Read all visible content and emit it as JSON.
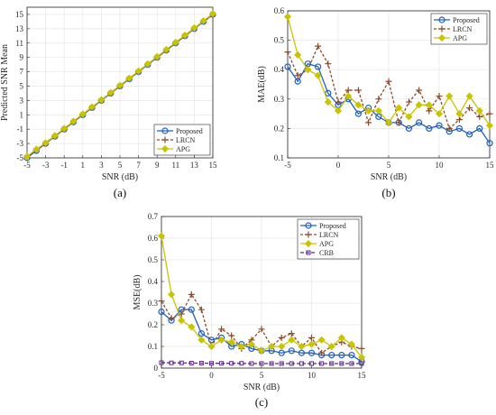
{
  "colors": {
    "proposed": "#1f5fbf",
    "lrcn": "#8b4a2b",
    "apg": "#c8c400",
    "crb": "#5b2a86"
  },
  "chart_data": [
    {
      "type": "line",
      "panel_label": "(a)",
      "xlabel": "SNR (dB)",
      "ylabel": "Predicted SNR Mean",
      "xlim": [
        -5,
        15
      ],
      "ylim": [
        -5,
        16
      ],
      "xticks": [
        -5,
        -3,
        -1,
        1,
        3,
        5,
        7,
        9,
        11,
        13,
        15
      ],
      "yticks": [
        -5,
        -3,
        -1,
        1,
        3,
        5,
        7,
        9,
        11,
        13,
        15
      ],
      "grid": true,
      "legend_position": "bottom-right",
      "x": [
        -5,
        -4,
        -3,
        -2,
        -1,
        0,
        1,
        2,
        3,
        4,
        5,
        6,
        7,
        8,
        9,
        10,
        11,
        12,
        13,
        14,
        15
      ],
      "series": [
        {
          "name": "Proposed",
          "values": [
            -5,
            -4,
            -3,
            -2,
            -1,
            0,
            1,
            2,
            3,
            4,
            5,
            6,
            7,
            8,
            9,
            10,
            11,
            12,
            13,
            14,
            15
          ]
        },
        {
          "name": "LRCN",
          "values": [
            -4.9,
            -3.9,
            -3,
            -2,
            -1,
            0,
            1,
            2,
            3,
            4,
            5,
            6,
            7,
            8,
            9,
            10,
            11,
            12,
            13,
            14,
            14.9
          ]
        },
        {
          "name": "APG",
          "values": [
            -4.8,
            -3.8,
            -2.9,
            -1.9,
            -0.9,
            0.1,
            1.1,
            2.1,
            3.1,
            4.1,
            5.1,
            6.1,
            7.1,
            8.1,
            9.1,
            10.1,
            11.1,
            12.1,
            13.1,
            14.1,
            15.1
          ]
        }
      ]
    },
    {
      "type": "line",
      "panel_label": "(b)",
      "xlabel": "SNR (dB)",
      "ylabel": "MAE(dB)",
      "xlim": [
        -5,
        15
      ],
      "ylim": [
        0.1,
        0.6
      ],
      "xticks": [
        -5,
        0,
        5,
        10,
        15
      ],
      "yticks": [
        0.1,
        0.2,
        0.3,
        0.4,
        0.5,
        0.6
      ],
      "grid": true,
      "legend_position": "top-right",
      "x": [
        -5,
        -4,
        -3,
        -2,
        -1,
        0,
        1,
        2,
        3,
        4,
        5,
        6,
        7,
        8,
        9,
        10,
        11,
        12,
        13,
        14,
        15
      ],
      "series": [
        {
          "name": "Proposed",
          "values": [
            0.41,
            0.36,
            0.42,
            0.41,
            0.32,
            0.28,
            0.3,
            0.25,
            0.27,
            0.24,
            0.22,
            0.22,
            0.2,
            0.22,
            0.2,
            0.21,
            0.19,
            0.2,
            0.18,
            0.2,
            0.15
          ]
        },
        {
          "name": "LRCN",
          "values": [
            0.46,
            0.38,
            0.4,
            0.48,
            0.42,
            0.29,
            0.33,
            0.33,
            0.22,
            0.3,
            0.36,
            0.22,
            0.29,
            0.33,
            0.26,
            0.31,
            0.2,
            0.23,
            0.27,
            0.24,
            0.25
          ]
        },
        {
          "name": "APG",
          "values": [
            0.58,
            0.45,
            0.4,
            0.38,
            0.29,
            0.26,
            0.31,
            0.28,
            0.26,
            0.26,
            0.22,
            0.27,
            0.24,
            0.28,
            0.28,
            0.25,
            0.31,
            0.25,
            0.31,
            0.26,
            0.21
          ]
        }
      ]
    },
    {
      "type": "line",
      "panel_label": "(c)",
      "xlabel": "SNR (dB)",
      "ylabel": "MSE(dB)",
      "xlim": [
        -5,
        15
      ],
      "ylim": [
        0,
        0.7
      ],
      "xticks": [
        -5,
        0,
        5,
        10,
        15
      ],
      "yticks": [
        0,
        0.1,
        0.2,
        0.3,
        0.4,
        0.5,
        0.6,
        0.7
      ],
      "grid": true,
      "legend_position": "top-right",
      "x": [
        -5,
        -4,
        -3,
        -2,
        -1,
        0,
        1,
        2,
        3,
        4,
        5,
        6,
        7,
        8,
        9,
        10,
        11,
        12,
        13,
        14,
        15
      ],
      "series": [
        {
          "name": "Proposed",
          "values": [
            0.26,
            0.22,
            0.27,
            0.27,
            0.16,
            0.13,
            0.14,
            0.1,
            0.11,
            0.09,
            0.08,
            0.08,
            0.07,
            0.08,
            0.07,
            0.07,
            0.06,
            0.06,
            0.06,
            0.06,
            0.03
          ]
        },
        {
          "name": "LRCN",
          "values": [
            0.31,
            0.23,
            0.25,
            0.34,
            0.27,
            0.1,
            0.18,
            0.15,
            0.09,
            0.13,
            0.18,
            0.1,
            0.14,
            0.16,
            0.1,
            0.14,
            0.07,
            0.1,
            0.12,
            0.1,
            0.09
          ]
        },
        {
          "name": "APG",
          "values": [
            0.61,
            0.34,
            0.22,
            0.19,
            0.13,
            0.1,
            0.13,
            0.12,
            0.1,
            0.11,
            0.08,
            0.1,
            0.1,
            0.13,
            0.1,
            0.11,
            0.13,
            0.1,
            0.14,
            0.11,
            0.05
          ]
        },
        {
          "name": "CRB",
          "values": [
            0.025,
            0.024,
            0.024,
            0.023,
            0.023,
            0.022,
            0.022,
            0.022,
            0.022,
            0.021,
            0.021,
            0.021,
            0.021,
            0.021,
            0.021,
            0.021,
            0.021,
            0.021,
            0.021,
            0.021,
            0.021
          ]
        }
      ]
    }
  ]
}
